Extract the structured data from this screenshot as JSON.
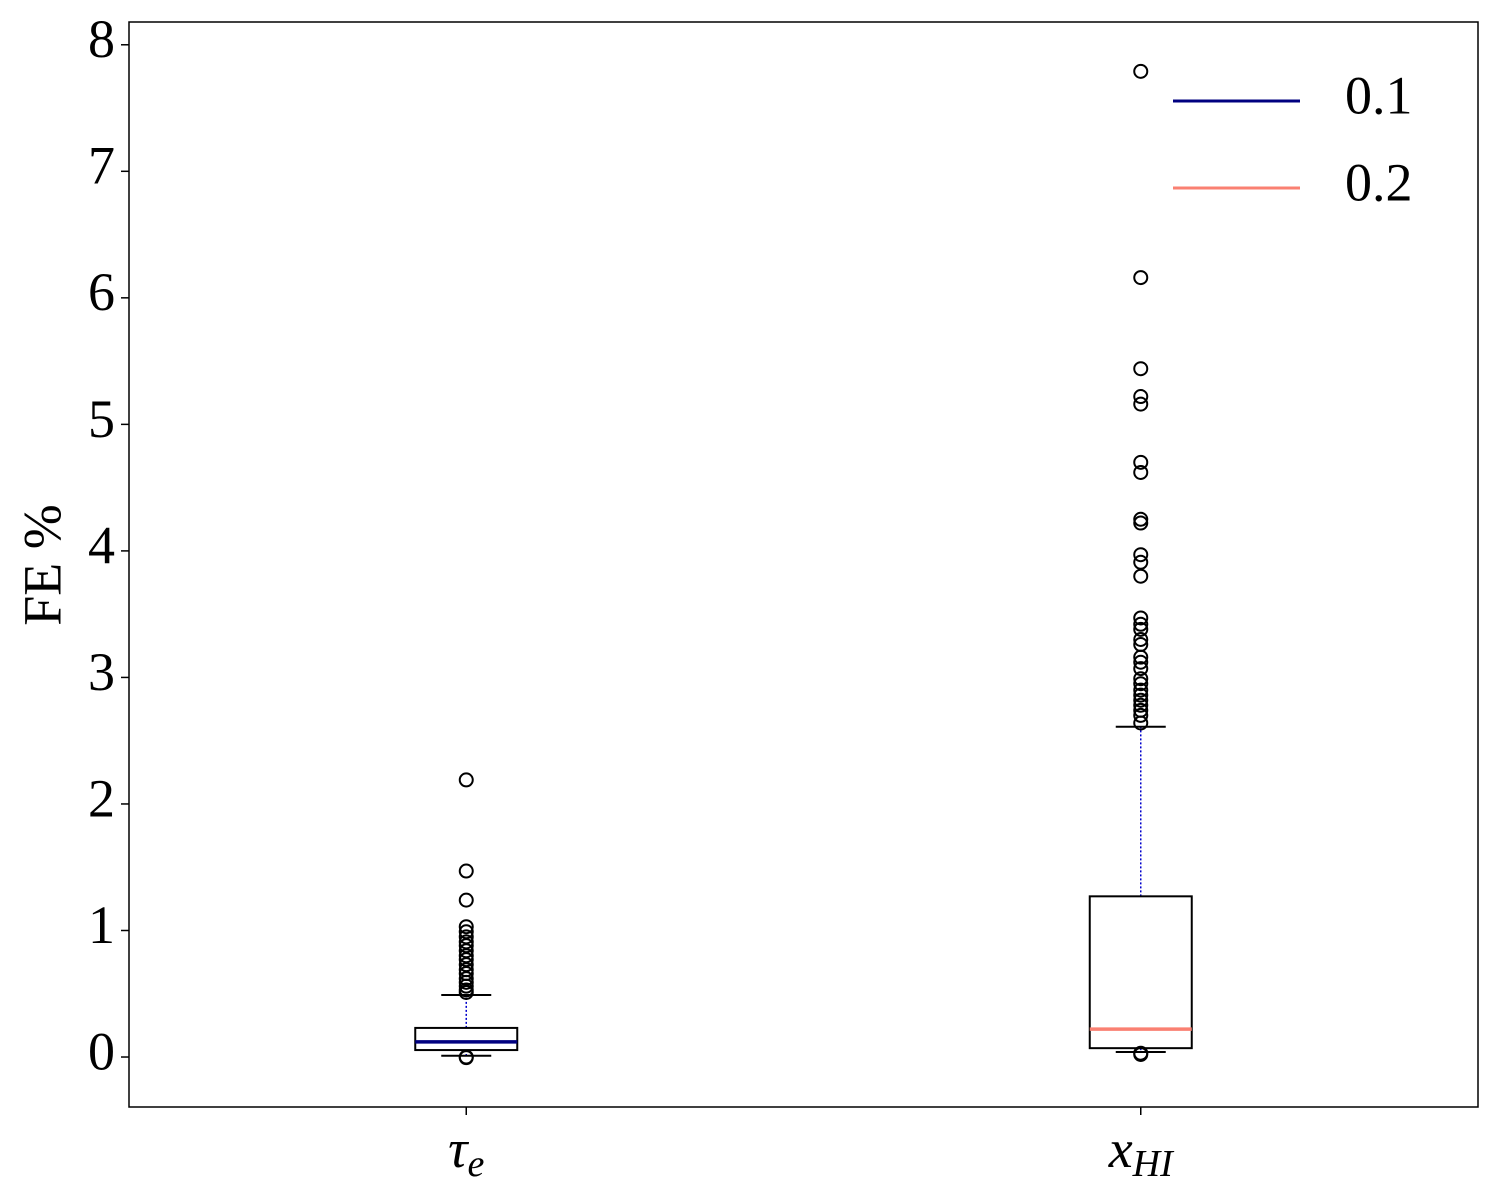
{
  "chart_data": {
    "type": "box",
    "ylabel": "FE %",
    "categories": [
      "τe",
      "xHI"
    ],
    "ylim": [
      -0.395,
      8.18
    ],
    "yticks": [
      0,
      1,
      2,
      3,
      4,
      5,
      6,
      7,
      8
    ],
    "whisker_color": "#0000cc",
    "legend": "upper right",
    "series": [
      {
        "name": "0.1",
        "color": "#000080",
        "whislo": 0.01,
        "q1": 0.055,
        "median": 0.12,
        "q3": 0.23,
        "whishi": 0.49,
        "fliers": [
          2.19,
          1.47,
          1.24,
          1.03,
          0.99,
          0.95,
          0.91,
          0.88,
          0.84,
          0.8,
          0.77,
          0.73,
          0.69,
          0.66,
          0.62,
          0.59,
          0.56,
          0.53,
          0.51,
          0.0,
          -0.005
        ]
      },
      {
        "name": "0.2",
        "color": "#fa8072",
        "whislo": 0.04,
        "q1": 0.07,
        "median": 0.22,
        "q3": 1.27,
        "whishi": 2.61,
        "fliers": [
          7.79,
          6.16,
          5.44,
          5.22,
          5.16,
          4.7,
          4.62,
          4.25,
          4.22,
          3.97,
          3.91,
          3.8,
          3.47,
          3.42,
          3.38,
          3.3,
          3.26,
          3.16,
          3.12,
          3.07,
          2.99,
          2.95,
          2.9,
          2.86,
          2.82,
          2.78,
          2.74,
          2.7,
          2.64,
          0.03,
          0.02
        ]
      }
    ]
  }
}
